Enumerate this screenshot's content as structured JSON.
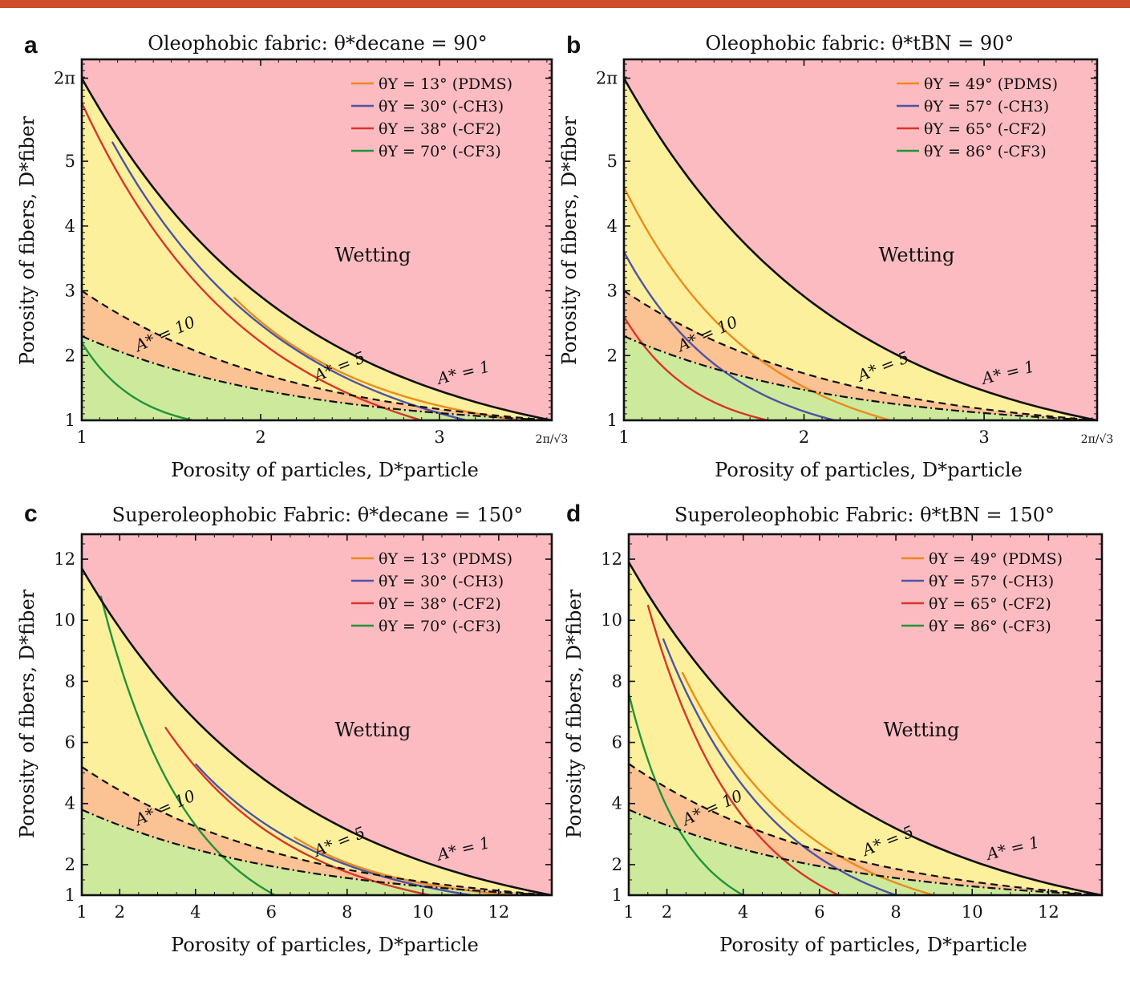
{
  "banner_color": "#cf4b2b",
  "colors": {
    "wetting": "#fbbbc1",
    "yellow": "#fdf09c",
    "orange": "#fbc294",
    "green": "#cdea9c",
    "PDMS": "#ec8a1c",
    "CH3": "#4d54a4",
    "CF2": "#d8352b",
    "CF3": "#21933a"
  },
  "chart_data": [
    {
      "panel": "a",
      "type": "area",
      "title": "Oleophobic fabric: θ*decane = 90°",
      "xlabel": "Porosity of particles, D*particle",
      "ylabel": "Porosity of fibers, D*fiber",
      "xlim": [
        1,
        3.6276
      ],
      "ylim": [
        1,
        6.2832
      ],
      "xticks": [
        "1",
        "2",
        "3",
        "2π/√3"
      ],
      "yticks": [
        "1",
        "2",
        "3",
        "4",
        "5",
        "2π"
      ],
      "region_label": "Wetting",
      "boundaries": [
        {
          "name": "A* = 1",
          "style": "solid",
          "y_at_x1": 6.2832,
          "end_x": 3.6276
        },
        {
          "name": "A* = 5",
          "style": "dashed",
          "y_at_x1": 3.0,
          "end_x": 3.6276
        },
        {
          "name": "A* = 10",
          "style": "dash-dot",
          "y_at_x1": 2.3,
          "end_x": 3.6276
        }
      ],
      "series": [
        {
          "name": "θY = 13° (PDMS)",
          "color_key": "PDMS",
          "start": [
            1.85,
            2.9
          ],
          "end": [
            3.45,
            1.0
          ]
        },
        {
          "name": "θY = 30° (-CH3)",
          "color_key": "CH3",
          "start": [
            1.17,
            5.3
          ],
          "end": [
            3.15,
            1.0
          ]
        },
        {
          "name": "θY = 38° (-CF2)",
          "color_key": "CF2",
          "start": [
            1.0,
            5.9
          ],
          "end": [
            2.9,
            1.0
          ]
        },
        {
          "name": "θY = 70° (-CF3)",
          "color_key": "CF3",
          "start": [
            1.0,
            2.2
          ],
          "end": [
            1.62,
            1.0
          ]
        }
      ]
    },
    {
      "panel": "b",
      "type": "area",
      "title": "Oleophobic fabric: θ*tBN = 90°",
      "xlabel": "Porosity of particles, D*particle",
      "ylabel": "Porosity of fibers, D*fiber",
      "xlim": [
        1,
        3.6276
      ],
      "ylim": [
        1,
        6.2832
      ],
      "xticks": [
        "1",
        "2",
        "3",
        "2π/√3"
      ],
      "yticks": [
        "1",
        "2",
        "3",
        "4",
        "5",
        "2π"
      ],
      "region_label": "Wetting",
      "boundaries": [
        {
          "name": "A* = 1",
          "style": "solid",
          "y_at_x1": 6.2832,
          "end_x": 3.6276
        },
        {
          "name": "A* = 5",
          "style": "dashed",
          "y_at_x1": 3.0,
          "end_x": 3.6276
        },
        {
          "name": "A* = 10",
          "style": "dash-dot",
          "y_at_x1": 2.3,
          "end_x": 3.6276
        }
      ],
      "series": [
        {
          "name": "θY = 49° (PDMS)",
          "color_key": "PDMS",
          "start": [
            1.0,
            4.6
          ],
          "end": [
            2.48,
            1.0
          ]
        },
        {
          "name": "θY = 57° (-CH3)",
          "color_key": "CH3",
          "start": [
            1.0,
            3.6
          ],
          "end": [
            2.17,
            1.0
          ]
        },
        {
          "name": "θY = 65° (-CF2)",
          "color_key": "CF2",
          "start": [
            1.0,
            2.6
          ],
          "end": [
            1.8,
            1.0
          ]
        },
        {
          "name": "θY = 86° (-CF3)",
          "color_key": "CF3",
          "start": [
            1.0,
            1.0
          ],
          "end": [
            1.0,
            1.0
          ]
        }
      ]
    },
    {
      "panel": "c",
      "type": "area",
      "title": "Superoleophobic Fabric: θ*decane = 150°",
      "xlabel": "Porosity of particles, D*particle",
      "ylabel": "Porosity of fibers, D*fiber",
      "xlim": [
        1,
        13.4
      ],
      "ylim": [
        1,
        12.2
      ],
      "xticks": [
        "1",
        "2",
        "4",
        "6",
        "8",
        "10",
        "12"
      ],
      "yticks": [
        "1",
        "2",
        "4",
        "6",
        "8",
        "10",
        "12"
      ],
      "region_label": "Wetting",
      "boundaries": [
        {
          "name": "A* = 1",
          "style": "solid",
          "y_at_x1": 11.7,
          "end_x": 13.4
        },
        {
          "name": "A* = 5",
          "style": "dashed",
          "y_at_x1": 5.2,
          "end_x": 13.4
        },
        {
          "name": "A* = 10",
          "style": "dash-dot",
          "y_at_x1": 3.8,
          "end_x": 13.4
        }
      ],
      "series": [
        {
          "name": "θY = 13° (PDMS)",
          "color_key": "PDMS",
          "start": [
            6.6,
            2.9
          ],
          "end": [
            12.4,
            1.0
          ]
        },
        {
          "name": "θY = 30° (-CH3)",
          "color_key": "CH3",
          "start": [
            4.0,
            5.3
          ],
          "end": [
            11.3,
            1.0
          ]
        },
        {
          "name": "θY = 38° (-CF2)",
          "color_key": "CF2",
          "start": [
            3.2,
            6.5
          ],
          "end": [
            10.2,
            1.0
          ]
        },
        {
          "name": "θY = 70° (-CF3)",
          "color_key": "CF3",
          "start": [
            1.5,
            10.8
          ],
          "end": [
            6.1,
            1.0
          ]
        }
      ]
    },
    {
      "panel": "d",
      "type": "area",
      "title": "Superoleophobic Fabric: θ*tBN = 150°",
      "xlabel": "Porosity of particles, D*particle",
      "ylabel": "Porosity of fibers, D*fiber",
      "xlim": [
        1,
        13.4
      ],
      "ylim": [
        1,
        12.2
      ],
      "xticks": [
        "1",
        "2",
        "4",
        "6",
        "8",
        "10",
        "12"
      ],
      "yticks": [
        "1",
        "2",
        "4",
        "6",
        "8",
        "10",
        "12"
      ],
      "region_label": "Wetting",
      "boundaries": [
        {
          "name": "A* = 1",
          "style": "solid",
          "y_at_x1": 11.9,
          "end_x": 13.4
        },
        {
          "name": "A* = 5",
          "style": "dashed",
          "y_at_x1": 5.3,
          "end_x": 13.4
        },
        {
          "name": "A* = 10",
          "style": "dash-dot",
          "y_at_x1": 3.8,
          "end_x": 13.4
        }
      ],
      "series": [
        {
          "name": "θY = 49° (PDMS)",
          "color_key": "PDMS",
          "start": [
            2.4,
            8.3
          ],
          "end": [
            9.0,
            1.0
          ]
        },
        {
          "name": "θY = 57° (-CH3)",
          "color_key": "CH3",
          "start": [
            1.9,
            9.4
          ],
          "end": [
            8.0,
            1.0
          ]
        },
        {
          "name": "θY = 65° (-CF2)",
          "color_key": "CF2",
          "start": [
            1.5,
            10.5
          ],
          "end": [
            6.5,
            1.0
          ]
        },
        {
          "name": "θY = 86° (-CF3)",
          "color_key": "CF3",
          "start": [
            1.0,
            7.6
          ],
          "end": [
            4.0,
            1.0
          ]
        }
      ]
    }
  ]
}
